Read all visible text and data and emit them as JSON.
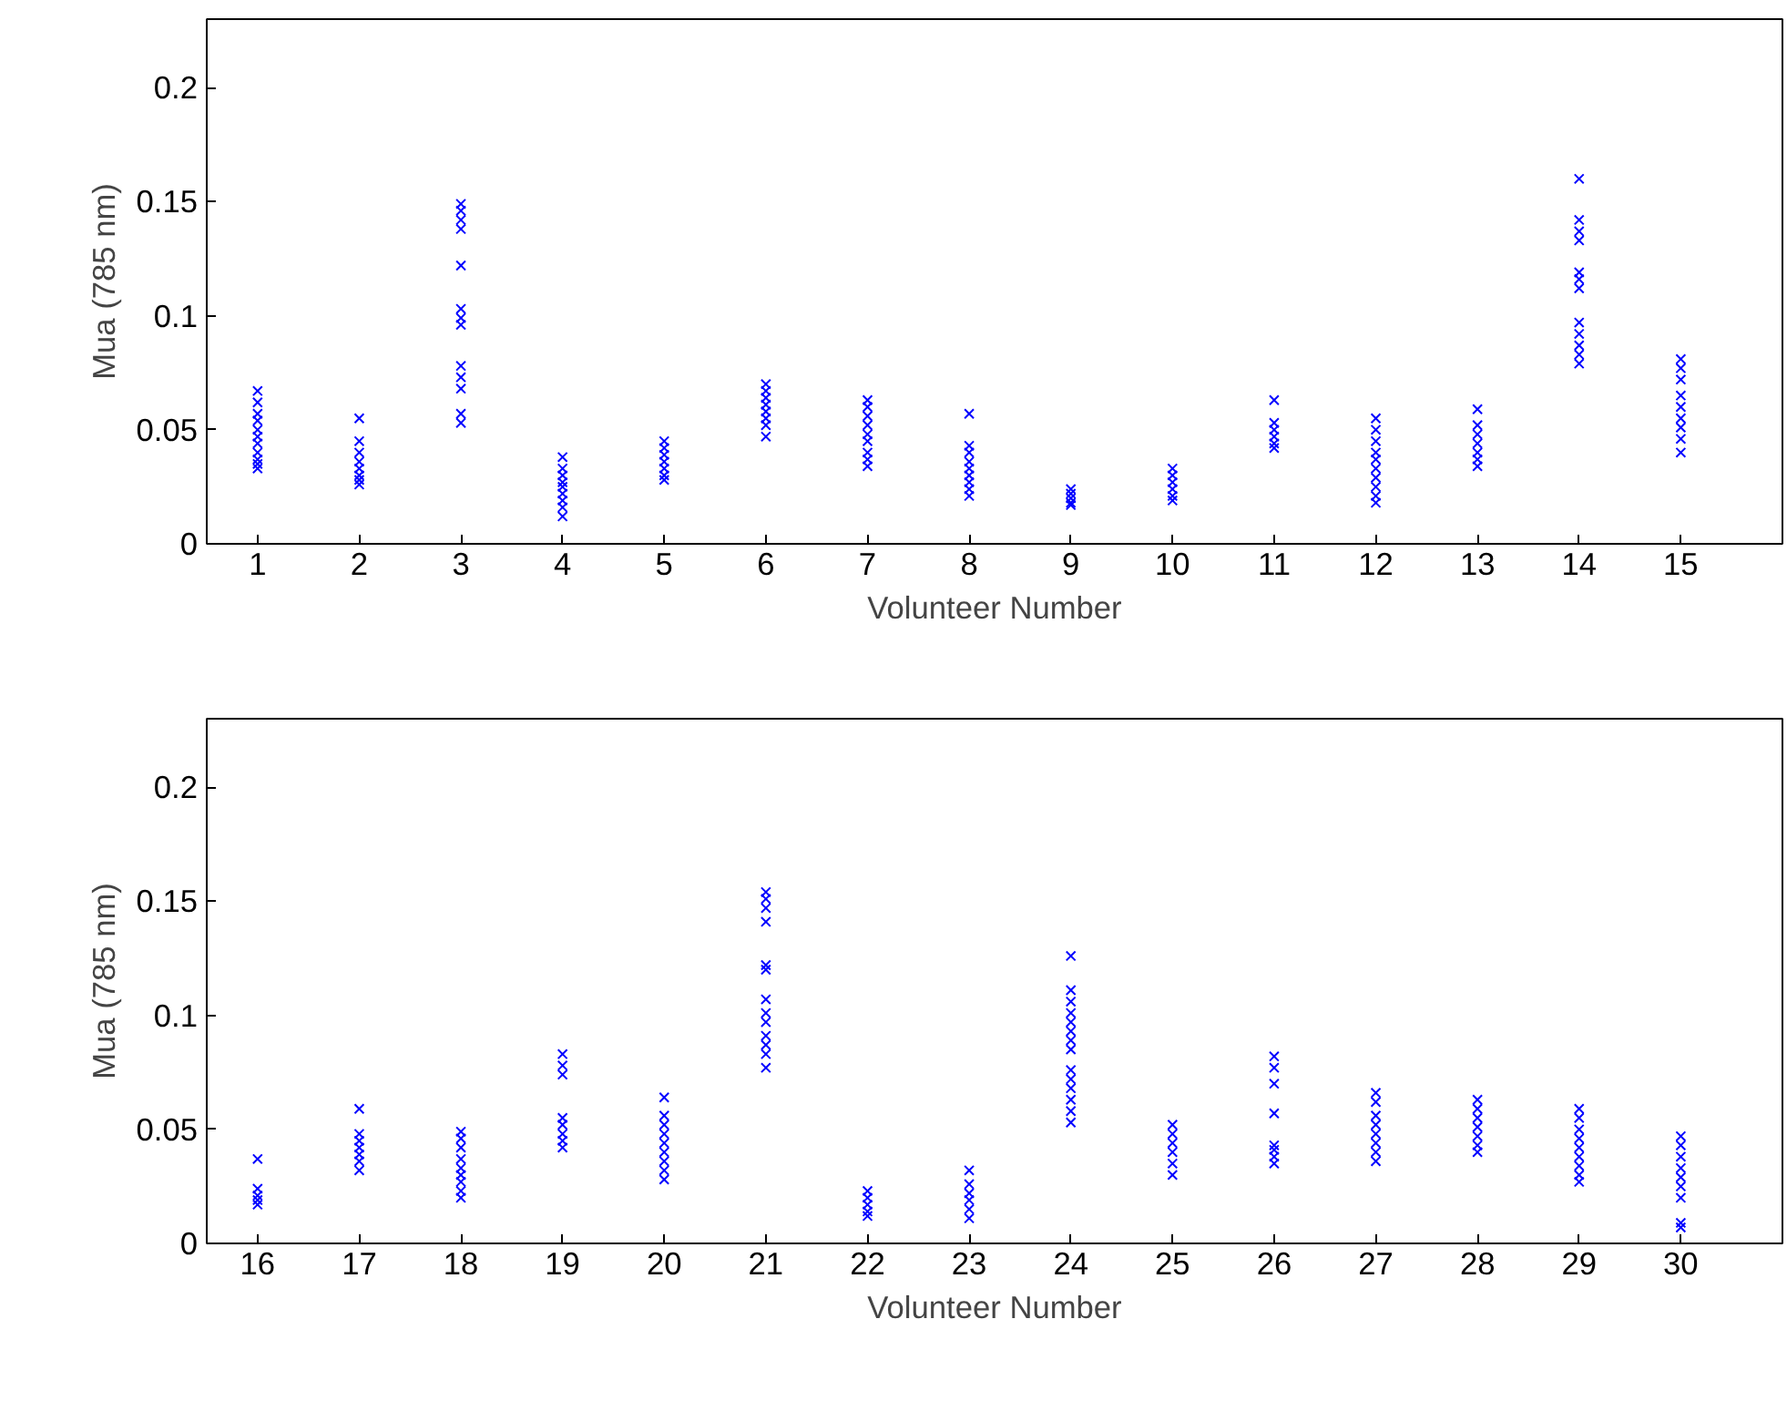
{
  "chart_data": [
    {
      "type": "scatter",
      "xlabel": "Volunteer Number",
      "ylabel": "Mua (785 nm)",
      "xlim": [
        0.5,
        16
      ],
      "xticks": [
        1,
        2,
        3,
        4,
        5,
        6,
        7,
        8,
        9,
        10,
        11,
        12,
        13,
        14,
        15
      ],
      "ylim": [
        0,
        0.23
      ],
      "yticks": [
        0,
        0.05,
        0.1,
        0.15,
        0.2
      ],
      "grid": false,
      "marker": "cross",
      "series": [
        {
          "color": "#0000ff",
          "x": [
            1,
            1,
            1,
            1,
            1,
            1,
            1,
            1,
            1,
            1,
            1,
            2,
            2,
            2,
            2,
            2,
            2,
            2,
            2,
            3,
            3,
            3,
            3,
            3,
            3,
            3,
            3,
            3,
            3,
            3,
            3,
            3,
            4,
            4,
            4,
            4,
            4,
            4,
            4,
            4,
            4,
            5,
            5,
            5,
            5,
            5,
            5,
            5,
            6,
            6,
            6,
            6,
            6,
            6,
            6,
            6,
            7,
            7,
            7,
            7,
            7,
            7,
            7,
            7,
            7,
            8,
            8,
            8,
            8,
            8,
            8,
            8,
            8,
            8,
            9,
            9,
            9,
            9,
            9,
            10,
            10,
            10,
            10,
            10,
            10,
            11,
            11,
            11,
            11,
            11,
            11,
            12,
            12,
            12,
            12,
            12,
            12,
            12,
            12,
            12,
            12,
            13,
            13,
            13,
            13,
            13,
            13,
            13,
            14,
            14,
            14,
            14,
            14,
            14,
            14,
            14,
            14,
            14,
            14,
            14,
            15,
            15,
            15,
            15,
            15,
            15,
            15,
            15,
            15
          ],
          "values": [
            0.067,
            0.062,
            0.057,
            0.054,
            0.05,
            0.047,
            0.044,
            0.04,
            0.037,
            0.035,
            0.033,
            0.055,
            0.045,
            0.04,
            0.036,
            0.033,
            0.03,
            0.028,
            0.026,
            0.149,
            0.146,
            0.142,
            0.138,
            0.122,
            0.103,
            0.099,
            0.096,
            0.078,
            0.073,
            0.068,
            0.057,
            0.053,
            0.038,
            0.033,
            0.03,
            0.027,
            0.025,
            0.022,
            0.019,
            0.016,
            0.012,
            0.045,
            0.042,
            0.039,
            0.036,
            0.033,
            0.03,
            0.028,
            0.07,
            0.067,
            0.064,
            0.061,
            0.058,
            0.055,
            0.052,
            0.047,
            0.063,
            0.06,
            0.056,
            0.052,
            0.048,
            0.045,
            0.04,
            0.037,
            0.034,
            0.057,
            0.043,
            0.04,
            0.036,
            0.033,
            0.03,
            0.027,
            0.024,
            0.021,
            0.024,
            0.022,
            0.02,
            0.018,
            0.017,
            0.033,
            0.03,
            0.027,
            0.024,
            0.021,
            0.019,
            0.063,
            0.053,
            0.05,
            0.047,
            0.044,
            0.042,
            0.055,
            0.05,
            0.045,
            0.04,
            0.037,
            0.033,
            0.029,
            0.025,
            0.021,
            0.018,
            0.059,
            0.052,
            0.048,
            0.044,
            0.04,
            0.037,
            0.034,
            0.16,
            0.142,
            0.137,
            0.133,
            0.119,
            0.116,
            0.112,
            0.097,
            0.092,
            0.087,
            0.083,
            0.079,
            0.081,
            0.077,
            0.072,
            0.065,
            0.06,
            0.055,
            0.051,
            0.046,
            0.04
          ]
        }
      ]
    },
    {
      "type": "scatter",
      "xlabel": "Volunteer Number",
      "ylabel": "Mua (785 nm)",
      "xlim": [
        15.5,
        31
      ],
      "xticks": [
        16,
        17,
        18,
        19,
        20,
        21,
        22,
        23,
        24,
        25,
        26,
        27,
        28,
        29,
        30
      ],
      "ylim": [
        0,
        0.23
      ],
      "yticks": [
        0,
        0.05,
        0.1,
        0.15,
        0.2
      ],
      "grid": false,
      "marker": "cross",
      "series": [
        {
          "color": "#0000ff",
          "x": [
            16,
            16,
            16,
            16,
            16,
            17,
            17,
            17,
            17,
            17,
            17,
            17,
            18,
            18,
            18,
            18,
            18,
            18,
            18,
            18,
            18,
            19,
            19,
            19,
            19,
            19,
            19,
            19,
            19,
            20,
            20,
            20,
            20,
            20,
            20,
            20,
            20,
            20,
            21,
            21,
            21,
            21,
            21,
            21,
            21,
            21,
            21,
            21,
            21,
            21,
            21,
            22,
            22,
            22,
            22,
            22,
            23,
            23,
            23,
            23,
            23,
            23,
            24,
            24,
            24,
            24,
            24,
            24,
            24,
            24,
            24,
            24,
            24,
            24,
            24,
            24,
            25,
            25,
            25,
            25,
            25,
            25,
            26,
            26,
            26,
            26,
            26,
            26,
            26,
            26,
            27,
            27,
            27,
            27,
            27,
            27,
            27,
            27,
            28,
            28,
            28,
            28,
            28,
            28,
            28,
            29,
            29,
            29,
            29,
            29,
            29,
            29,
            29,
            29,
            30,
            30,
            30,
            30,
            30,
            30,
            30,
            30,
            30
          ],
          "values": [
            0.037,
            0.024,
            0.021,
            0.019,
            0.017,
            0.059,
            0.048,
            0.045,
            0.042,
            0.039,
            0.036,
            0.032,
            0.049,
            0.046,
            0.042,
            0.037,
            0.033,
            0.03,
            0.027,
            0.023,
            0.02,
            0.083,
            0.078,
            0.074,
            0.055,
            0.052,
            0.048,
            0.045,
            0.042,
            0.064,
            0.056,
            0.052,
            0.048,
            0.044,
            0.04,
            0.036,
            0.032,
            0.028,
            0.154,
            0.151,
            0.147,
            0.141,
            0.122,
            0.12,
            0.107,
            0.101,
            0.097,
            0.091,
            0.087,
            0.083,
            0.077,
            0.023,
            0.02,
            0.017,
            0.014,
            0.012,
            0.032,
            0.026,
            0.022,
            0.019,
            0.015,
            0.011,
            0.126,
            0.111,
            0.106,
            0.101,
            0.097,
            0.093,
            0.089,
            0.085,
            0.076,
            0.072,
            0.068,
            0.063,
            0.058,
            0.053,
            0.052,
            0.048,
            0.044,
            0.04,
            0.035,
            0.03,
            0.082,
            0.077,
            0.07,
            0.057,
            0.043,
            0.041,
            0.038,
            0.035,
            0.066,
            0.062,
            0.056,
            0.052,
            0.048,
            0.044,
            0.04,
            0.036,
            0.063,
            0.059,
            0.055,
            0.051,
            0.047,
            0.043,
            0.04,
            0.059,
            0.055,
            0.05,
            0.046,
            0.042,
            0.038,
            0.034,
            0.03,
            0.027,
            0.047,
            0.043,
            0.038,
            0.033,
            0.029,
            0.025,
            0.02,
            0.009,
            0.007
          ]
        }
      ]
    }
  ]
}
